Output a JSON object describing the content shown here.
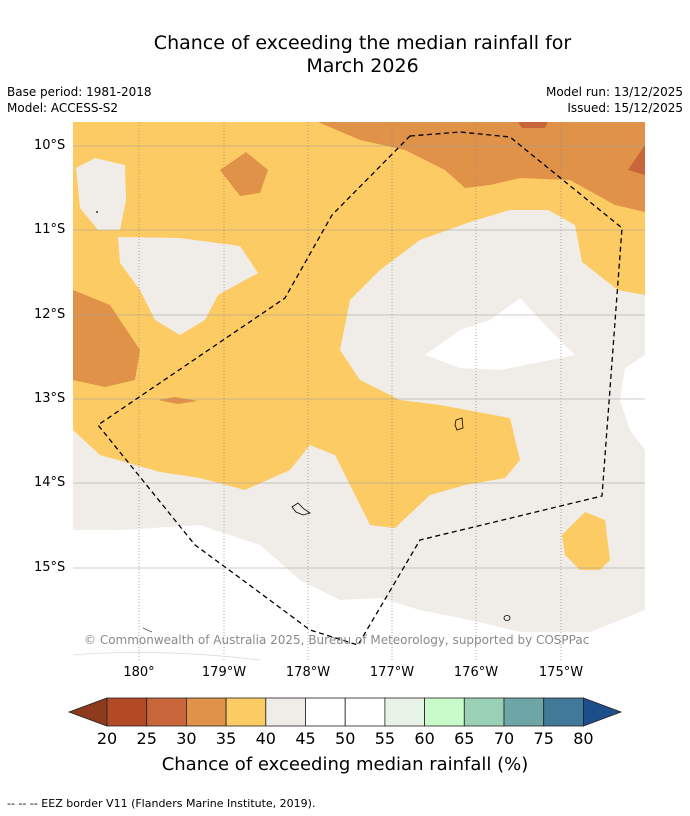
{
  "title": {
    "line1": "Chance of exceeding the median rainfall for",
    "line2": "March 2026"
  },
  "meta": {
    "base_period": "Base period: 1981-2018",
    "model": "Model: ACCESS-S2",
    "model_run": "Model run: 13/12/2025",
    "issued": "Issued: 15/12/2025"
  },
  "axes": {
    "lat_labels": [
      "10°S",
      "11°S",
      "12°S",
      "13°S",
      "14°S",
      "15°S"
    ],
    "lon_labels": [
      "180°",
      "179°W",
      "178°W",
      "177°W",
      "176°W",
      "175°W"
    ]
  },
  "copyright": "© Commonwealth of Australia 2025, Bureau of Meteorology, supported by COSPPac",
  "colorbar": {
    "label": "Chance of exceeding median rainfall (%)",
    "ticks": [
      "20",
      "25",
      "30",
      "35",
      "40",
      "45",
      "50",
      "55",
      "60",
      "65",
      "70",
      "75",
      "80"
    ],
    "colors": {
      "lt20": "#8e3a1d",
      "b20_25": "#b24a25",
      "b25_30": "#c9653a",
      "b30_35": "#df9248",
      "b35_40": "#fdcb64",
      "b40_45": "#f0ece7",
      "b45_50": "#ffffff",
      "b50_55": "#ffffff",
      "b55_60": "#e9f4e8",
      "b60_65": "#c8fbc9",
      "b65_70": "#9ad1b5",
      "b70_75": "#6ea5a6",
      "b75_80": "#417a98",
      "gt80": "#1d4e8c"
    }
  },
  "footnote": "--  --  -- EEZ border V11 (Flanders Marine Institute, 2019)."
}
